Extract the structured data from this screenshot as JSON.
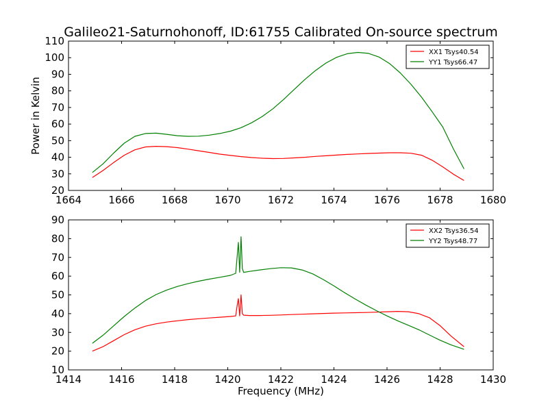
{
  "figure": {
    "title": "Galileo21-Saturnohonoff, ID:61755 Calibrated On-source spectrum"
  },
  "chart_data": [
    {
      "type": "line",
      "title": "Galileo21-Saturnohonoff, ID:61755 Calibrated On-source spectrum",
      "xlabel": "",
      "ylabel": "Power in Kelvin",
      "xlim": [
        1664,
        1680
      ],
      "ylim": [
        20,
        110
      ],
      "xticks": [
        1664,
        1666,
        1668,
        1670,
        1672,
        1674,
        1676,
        1678,
        1680
      ],
      "yticks": [
        20,
        30,
        40,
        50,
        60,
        70,
        80,
        90,
        100,
        110
      ],
      "grid": false,
      "legend_position": "top-right",
      "series": [
        {
          "name": "XX1 Tsys40.54",
          "color": "#ff0000",
          "x": [
            1664.9,
            1665.3,
            1665.7,
            1666.1,
            1666.5,
            1666.9,
            1667.3,
            1667.7,
            1668.1,
            1668.5,
            1668.9,
            1669.3,
            1669.7,
            1670.1,
            1670.5,
            1670.9,
            1671.3,
            1671.7,
            1672.1,
            1672.5,
            1672.9,
            1673.3,
            1673.7,
            1674.1,
            1674.5,
            1674.9,
            1675.3,
            1675.7,
            1676.1,
            1676.5,
            1676.9,
            1677.3,
            1677.7,
            1678.1,
            1678.5,
            1678.9
          ],
          "y": [
            27.8,
            32.0,
            36.8,
            41.2,
            44.5,
            46.2,
            46.6,
            46.4,
            45.8,
            44.9,
            43.9,
            42.9,
            41.9,
            41.1,
            40.4,
            39.8,
            39.4,
            39.2,
            39.3,
            39.6,
            40.0,
            40.5,
            40.9,
            41.3,
            41.7,
            42.0,
            42.3,
            42.5,
            42.7,
            42.7,
            42.4,
            41.2,
            38.2,
            34.2,
            29.8,
            26.0
          ]
        },
        {
          "name": "YY1 Tsys66.47",
          "color": "#008000",
          "x": [
            1664.9,
            1665.3,
            1665.7,
            1666.1,
            1666.5,
            1666.9,
            1667.3,
            1667.7,
            1668.1,
            1668.5,
            1668.9,
            1669.3,
            1669.7,
            1670.1,
            1670.5,
            1670.9,
            1671.3,
            1671.7,
            1672.1,
            1672.5,
            1672.9,
            1673.3,
            1673.7,
            1674.1,
            1674.5,
            1674.9,
            1675.3,
            1675.7,
            1676.1,
            1676.5,
            1676.9,
            1677.3,
            1677.7,
            1678.1,
            1678.5,
            1678.9
          ],
          "y": [
            30.8,
            36.0,
            42.5,
            48.5,
            52.6,
            54.3,
            54.5,
            53.8,
            53.0,
            52.6,
            52.7,
            53.3,
            54.3,
            55.7,
            57.8,
            60.8,
            64.6,
            69.2,
            74.8,
            80.8,
            86.8,
            92.2,
            96.8,
            100.2,
            102.4,
            103.2,
            102.6,
            100.4,
            96.4,
            90.8,
            84.0,
            76.2,
            67.4,
            58.2,
            45.0,
            33.0
          ]
        }
      ]
    },
    {
      "type": "line",
      "title": "",
      "xlabel": "Frequency (MHz)",
      "ylabel": "",
      "xlim": [
        1414,
        1430
      ],
      "ylim": [
        10,
        90
      ],
      "xticks": [
        1414,
        1416,
        1418,
        1420,
        1422,
        1424,
        1426,
        1428,
        1430
      ],
      "yticks": [
        10,
        20,
        30,
        40,
        50,
        60,
        70,
        80,
        90
      ],
      "grid": false,
      "legend_position": "top-right",
      "series": [
        {
          "name": "XX2 Tsys36.54",
          "color": "#ff0000",
          "x": [
            1414.9,
            1415.3,
            1415.7,
            1416.1,
            1416.5,
            1416.9,
            1417.3,
            1417.7,
            1418.1,
            1418.5,
            1418.9,
            1419.3,
            1419.7,
            1420.1,
            1420.3,
            1420.35,
            1420.4,
            1420.45,
            1420.5,
            1420.55,
            1420.6,
            1420.8,
            1421.2,
            1421.6,
            1422.0,
            1422.4,
            1422.8,
            1423.2,
            1423.6,
            1424.0,
            1424.4,
            1424.8,
            1425.2,
            1425.6,
            1426.0,
            1426.4,
            1426.8,
            1427.2,
            1427.6,
            1428.0,
            1428.4,
            1428.9
          ],
          "y": [
            20.0,
            22.4,
            25.6,
            28.8,
            31.4,
            33.3,
            34.6,
            35.5,
            36.2,
            36.8,
            37.3,
            37.7,
            38.1,
            38.5,
            38.8,
            44.0,
            48.0,
            38.8,
            50.0,
            40.0,
            39.2,
            39.0,
            39.0,
            39.1,
            39.3,
            39.5,
            39.7,
            39.9,
            40.1,
            40.3,
            40.4,
            40.5,
            40.6,
            40.8,
            41.0,
            41.2,
            41.0,
            40.0,
            37.8,
            33.6,
            28.2,
            22.4
          ]
        },
        {
          "name": "YY2 Tsys48.77",
          "color": "#008000",
          "x": [
            1414.9,
            1415.3,
            1415.7,
            1416.1,
            1416.5,
            1416.9,
            1417.3,
            1417.7,
            1418.1,
            1418.5,
            1418.9,
            1419.3,
            1419.7,
            1420.1,
            1420.3,
            1420.35,
            1420.4,
            1420.45,
            1420.5,
            1420.55,
            1420.6,
            1420.8,
            1421.2,
            1421.6,
            1422.0,
            1422.4,
            1422.8,
            1423.2,
            1423.6,
            1424.0,
            1424.4,
            1424.8,
            1425.2,
            1425.6,
            1426.0,
            1426.4,
            1426.8,
            1427.2,
            1427.6,
            1428.0,
            1428.4,
            1428.9
          ],
          "y": [
            24.2,
            28.5,
            33.5,
            38.5,
            43.0,
            47.0,
            50.2,
            52.6,
            54.5,
            56.0,
            57.3,
            58.4,
            59.4,
            60.4,
            61.5,
            70.0,
            78.0,
            62.0,
            81.0,
            64.0,
            62.0,
            62.5,
            63.3,
            64.0,
            64.5,
            64.4,
            63.3,
            61.2,
            58.2,
            54.8,
            51.2,
            47.8,
            44.6,
            41.6,
            38.8,
            36.2,
            33.8,
            31.4,
            28.6,
            25.8,
            23.4,
            21.0
          ]
        }
      ]
    }
  ]
}
